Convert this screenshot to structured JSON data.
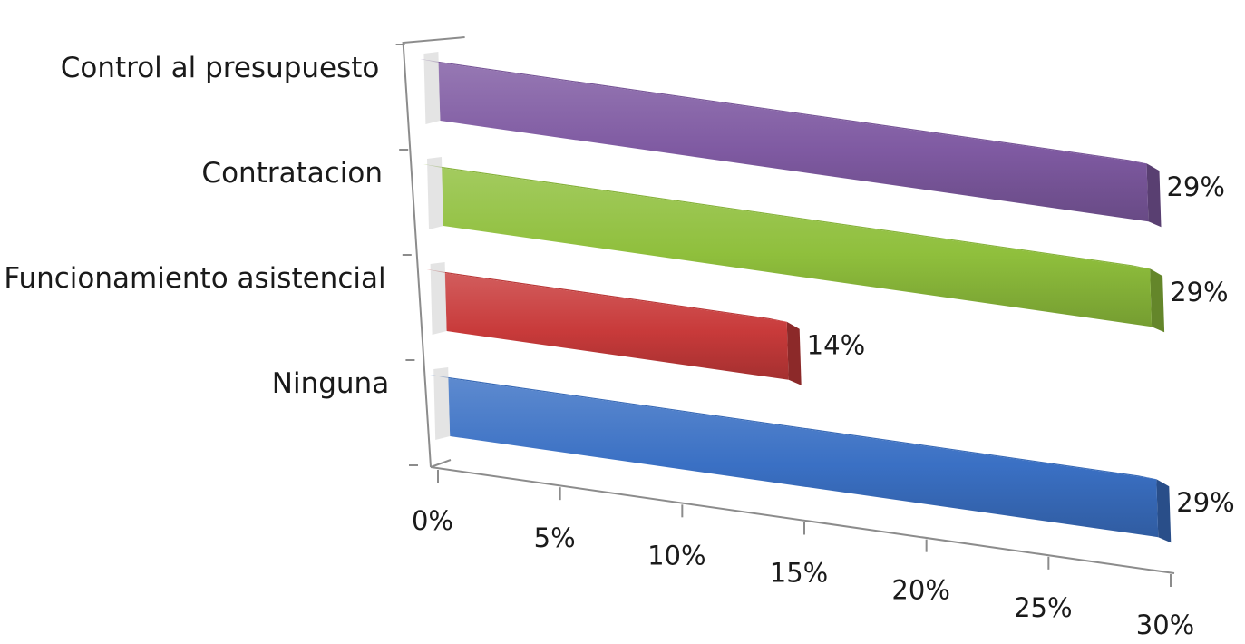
{
  "chart_data": {
    "type": "bar",
    "orientation": "horizontal",
    "style": "3d",
    "categories": [
      "Control al presupuesto",
      "Contratacion",
      "Funcionamiento asistencial",
      "Ninguna"
    ],
    "values": [
      29,
      29,
      14,
      29
    ],
    "value_labels": [
      "29%",
      "29%",
      "14%",
      "29%"
    ],
    "colors": [
      "#7f5aa2",
      "#8fbf3c",
      "#c83a3a",
      "#3a70c4"
    ],
    "x_ticks": [
      "0%",
      "5%",
      "10%",
      "15%",
      "20%",
      "25%",
      "30%"
    ],
    "xlim": [
      0,
      30
    ],
    "grid": false,
    "legend": "none"
  }
}
